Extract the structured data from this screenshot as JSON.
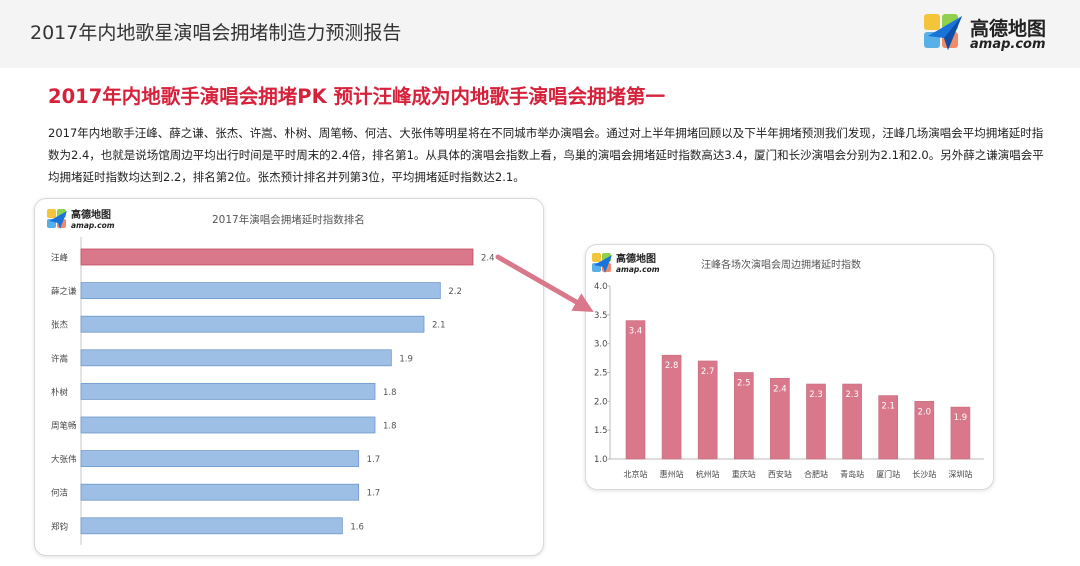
{
  "header": {
    "report_title": "2017年内地歌星演唱会拥堵制造力预测报告",
    "brand_name": "高德地图",
    "brand_domain": "amap.com"
  },
  "headline": "2017年内地歌手演唱会拥堵PK 预计汪峰成为内地歌手演唱会拥堵第一",
  "paragraph": "2017年内地歌手汪峰、薛之谦、张杰、许嵩、朴树、周笔畅、何洁、大张伟等明星将在不同城市举办演唱会。通过对上半年拥堵回顾以及下半年拥堵预测我们发现，汪峰几场演唱会平均拥堵延时指数为2.4，也就是说场馆周边平均出行时间是平时周末的2.4倍，排名第1。从具体的演唱会指数上看，鸟巢的演唱会拥堵延时指数高达3.4，厦门和长沙演唱会分别为2.1和2.0。另外薛之谦演唱会平均拥堵延时指数均达到2.2，排名第2位。张杰预计排名并列第3位，平均拥堵延时指数达2.1。",
  "colors": {
    "highlight_bar": "#d9788a",
    "highlight_bar_stroke": "#c24b63",
    "blue_bar": "#9dbfe6",
    "blue_bar_stroke": "#6f98cb",
    "pink_bar": "#d9788a",
    "headline": "#d6213b",
    "arrow": "#d9788a"
  },
  "chart_data": [
    {
      "type": "bar",
      "orientation": "horizontal",
      "title": "2017年演唱会拥堵延时指数排名",
      "brand_name": "高德地图",
      "brand_domain": "amap.com",
      "categories": [
        "汪峰",
        "薛之谦",
        "张杰",
        "许嵩",
        "朴树",
        "周笔畅",
        "大张伟",
        "何洁",
        "郑钧"
      ],
      "values": [
        2.4,
        2.2,
        2.1,
        1.9,
        1.8,
        1.8,
        1.7,
        1.7,
        1.6
      ],
      "value_labels": [
        "2.4",
        "2.2",
        "2.1",
        "1.9",
        "1.8",
        "1.8",
        "1.7",
        "1.7",
        "1.6"
      ],
      "highlight_index": 0,
      "xlim": [
        0,
        2.4
      ]
    },
    {
      "type": "bar",
      "orientation": "vertical",
      "title": "汪峰各场次演唱会周边拥堵延时指数",
      "brand_name": "高德地图",
      "brand_domain": "amap.com",
      "categories": [
        "北京站",
        "惠州站",
        "杭州站",
        "重庆站",
        "西安站",
        "合肥站",
        "青岛站",
        "厦门站",
        "长沙站",
        "深圳站"
      ],
      "values": [
        3.4,
        2.8,
        2.7,
        2.5,
        2.4,
        2.3,
        2.3,
        2.1,
        2.0,
        1.9
      ],
      "value_labels": [
        "3.4",
        "2.8",
        "2.7",
        "2.5",
        "2.4",
        "2.3",
        "2.3",
        "2.1",
        "2.0",
        "1.9"
      ],
      "ylim": [
        1.0,
        4.0
      ],
      "yticks": [
        "1.0",
        "1.5",
        "2.0",
        "2.5",
        "3.0",
        "3.5",
        "4.0"
      ],
      "grid": false
    }
  ]
}
